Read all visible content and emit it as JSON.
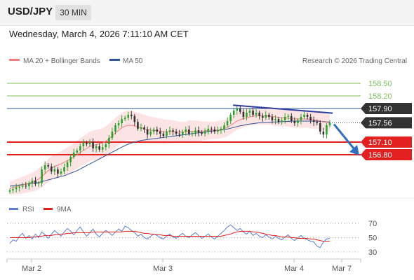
{
  "header": {
    "pair": "USD/JPY",
    "timeframe": "30 MIN",
    "datetime": "Wednesday, March 4, 2026 7:11:10 AM CET"
  },
  "legend": {
    "ma20_label": "MA 20 + Bollinger Bands",
    "ma50_label": "MA 50",
    "source": "Research © 2026 Trading Central",
    "rsi_label": "RSI",
    "rsi_ma_label": "9MA"
  },
  "colors": {
    "ma20": "#f08080",
    "ma50": "#2f5597",
    "bollinger": "#fde4e4",
    "candle_up": "#29a329",
    "candle_down": "#333333",
    "resistance": "#7cbf5a",
    "pivot": "#2f5597",
    "support": "#e32020",
    "trendline": "#2f3e9e",
    "arrow": "#2f6fbf",
    "rsi": "#5b7fd6",
    "rsi_ma": "#e32020",
    "current_label_bg": "#333333"
  },
  "chart_data": [
    {
      "type": "candlestick",
      "title": "USD/JPY",
      "timeframe": "30 MIN",
      "x_ticks": [
        "Mar 2",
        "Mar 3",
        "Mar 4",
        "Mar 7"
      ],
      "ylim": [
        155.85,
        158.85
      ],
      "current_price": 157.56,
      "levels": [
        {
          "value": 158.5,
          "label": "158.50",
          "kind": "resistance"
        },
        {
          "value": 158.2,
          "label": "158.20",
          "kind": "resistance"
        },
        {
          "value": 157.9,
          "label": "157.90",
          "kind": "pivot"
        },
        {
          "value": 157.1,
          "label": "157.10",
          "kind": "support"
        },
        {
          "value": 156.8,
          "label": "156.80",
          "kind": "support"
        }
      ],
      "current_label": "157.56",
      "close": [
        155.95,
        155.98,
        156.02,
        156.04,
        156.06,
        156.05,
        156.12,
        156.18,
        156.1,
        156.12,
        156.45,
        156.55,
        156.52,
        156.4,
        156.45,
        156.35,
        156.4,
        156.5,
        156.62,
        156.75,
        156.85,
        156.9,
        157.0,
        157.08,
        157.05,
        157.1,
        156.95,
        157.0,
        156.92,
        156.98,
        157.05,
        157.2,
        157.35,
        157.5,
        157.55,
        157.65,
        157.68,
        157.75,
        157.72,
        157.58,
        157.42,
        157.45,
        157.4,
        157.28,
        157.35,
        157.4,
        157.35,
        157.3,
        157.25,
        157.35,
        157.38,
        157.35,
        157.3,
        157.28,
        157.35,
        157.4,
        157.3,
        157.32,
        157.38,
        157.33,
        157.3,
        157.36,
        157.42,
        157.4,
        157.35,
        157.38,
        157.42,
        157.5,
        157.6,
        157.75,
        157.85,
        157.9,
        157.82,
        157.7,
        157.8,
        157.85,
        157.75,
        157.8,
        157.72,
        157.68,
        157.75,
        157.7,
        157.62,
        157.65,
        157.58,
        157.62,
        157.7,
        157.72,
        157.6,
        157.55,
        157.62,
        157.7,
        157.75,
        157.7,
        157.62,
        157.58,
        157.55,
        157.35,
        157.28,
        157.5,
        157.56
      ],
      "ma20": [
        156.0,
        156.02,
        156.04,
        156.06,
        156.08,
        156.1,
        156.12,
        156.15,
        156.18,
        156.22,
        156.28,
        156.35,
        156.42,
        156.48,
        156.52,
        156.55,
        156.58,
        156.62,
        156.66,
        156.7,
        156.75,
        156.8,
        156.85,
        156.9,
        156.95,
        157.0,
        157.02,
        157.04,
        157.06,
        157.08,
        157.12,
        157.18,
        157.25,
        157.32,
        157.38,
        157.44,
        157.48,
        157.5,
        157.5,
        157.48,
        157.46,
        157.44,
        157.42,
        157.4,
        157.38,
        157.38,
        157.37,
        157.36,
        157.35,
        157.35,
        157.35,
        157.35,
        157.34,
        157.34,
        157.34,
        157.35,
        157.35,
        157.35,
        157.36,
        157.36,
        157.36,
        157.37,
        157.37,
        157.38,
        157.38,
        157.39,
        157.4,
        157.42,
        157.45,
        157.5,
        157.55,
        157.6,
        157.63,
        157.66,
        157.68,
        157.7,
        157.72,
        157.73,
        157.73,
        157.73,
        157.72,
        157.72,
        157.71,
        157.7,
        157.69,
        157.68,
        157.68,
        157.67,
        157.66,
        157.65,
        157.65,
        157.65,
        157.65,
        157.65,
        157.64,
        157.63,
        157.62,
        157.6,
        157.58,
        157.57,
        157.56
      ],
      "ma50": [
        156.05,
        156.06,
        156.07,
        156.08,
        156.09,
        156.1,
        156.11,
        156.12,
        156.13,
        156.14,
        156.16,
        156.18,
        156.2,
        156.22,
        156.24,
        156.26,
        156.28,
        156.3,
        156.33,
        156.36,
        156.39,
        156.42,
        156.46,
        156.5,
        156.54,
        156.58,
        156.62,
        156.66,
        156.7,
        156.74,
        156.78,
        156.82,
        156.86,
        156.9,
        156.94,
        156.98,
        157.02,
        157.05,
        157.08,
        157.1,
        157.12,
        157.14,
        157.15,
        157.16,
        157.17,
        157.18,
        157.19,
        157.2,
        157.21,
        157.22,
        157.23,
        157.24,
        157.25,
        157.26,
        157.27,
        157.28,
        157.29,
        157.3,
        157.31,
        157.32,
        157.33,
        157.34,
        157.35,
        157.36,
        157.37,
        157.38,
        157.39,
        157.4,
        157.41,
        157.43,
        157.45,
        157.47,
        157.49,
        157.5,
        157.52,
        157.53,
        157.54,
        157.55,
        157.56,
        157.56,
        157.57,
        157.57,
        157.58,
        157.58,
        157.58,
        157.59,
        157.59,
        157.59,
        157.6,
        157.6,
        157.6,
        157.6,
        157.6,
        157.6,
        157.6,
        157.6,
        157.6,
        157.59,
        157.59,
        157.58,
        157.58
      ]
    },
    {
      "type": "line",
      "title": "RSI",
      "series": [
        {
          "name": "RSI",
          "values": [
            42,
            47,
            45,
            52,
            56,
            49,
            53,
            48,
            55,
            50,
            58,
            54,
            49,
            55,
            60,
            56,
            52,
            58,
            63,
            59,
            54,
            60,
            65,
            58,
            52,
            57,
            62,
            55,
            51,
            56,
            60,
            57,
            53,
            58,
            62,
            59,
            66,
            64,
            60,
            57,
            52,
            55,
            50,
            48,
            52,
            55,
            53,
            50,
            48,
            52,
            55,
            51,
            49,
            53,
            56,
            52,
            50,
            54,
            57,
            53,
            49,
            52,
            55,
            51,
            48,
            52,
            56,
            60,
            65,
            68,
            64,
            60,
            63,
            58,
            55,
            59,
            53,
            56,
            52,
            50,
            54,
            51,
            48,
            52,
            49,
            47,
            51,
            54,
            49,
            46,
            50,
            53,
            49,
            47,
            45,
            44,
            38,
            36,
            44,
            48,
            49
          ]
        },
        {
          "name": "9MA",
          "values": [
            50,
            50,
            50,
            50,
            50,
            50,
            50,
            51,
            51,
            52,
            52,
            53,
            53,
            53,
            54,
            54,
            55,
            55,
            56,
            56,
            57,
            57,
            57,
            57,
            57,
            57,
            58,
            58,
            58,
            58,
            58,
            58,
            58,
            58,
            58,
            58,
            59,
            59,
            59,
            59,
            58,
            57,
            56,
            56,
            55,
            55,
            54,
            54,
            53,
            53,
            53,
            52,
            52,
            52,
            52,
            52,
            52,
            52,
            52,
            52,
            52,
            52,
            52,
            52,
            52,
            52,
            52,
            53,
            54,
            55,
            57,
            58,
            59,
            59,
            59,
            59,
            58,
            58,
            57,
            56,
            55,
            54,
            53,
            53,
            52,
            51,
            51,
            51,
            50,
            50,
            49,
            49,
            49,
            49,
            48,
            48,
            47,
            46,
            45,
            45,
            45
          ]
        }
      ],
      "y_ticks": [
        "70",
        "50",
        "30"
      ],
      "ylim": [
        20,
        80
      ]
    }
  ]
}
